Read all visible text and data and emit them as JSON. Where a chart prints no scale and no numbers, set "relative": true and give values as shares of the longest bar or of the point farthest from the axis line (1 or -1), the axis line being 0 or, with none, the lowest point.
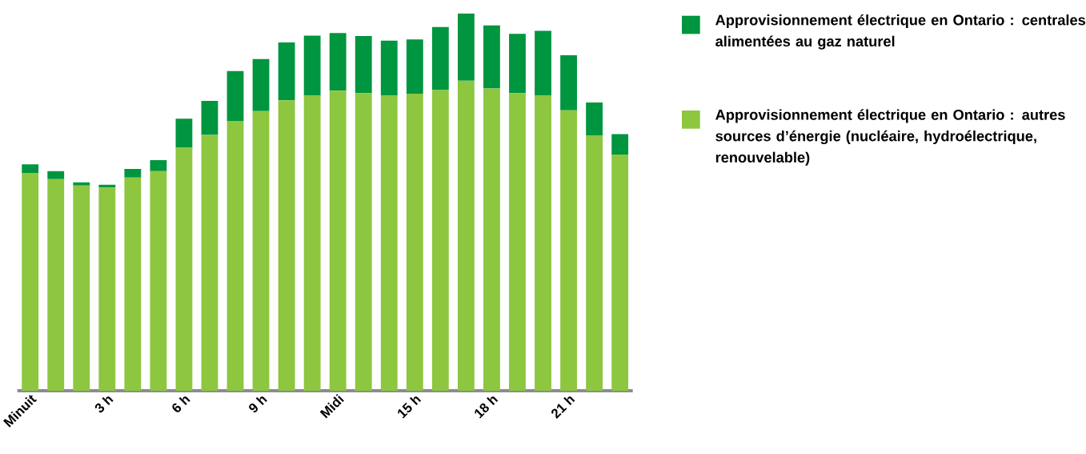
{
  "chart_data": {
    "type": "bar",
    "stacked": true,
    "relative": true,
    "legend": "top right",
    "categories": [
      "Minuit",
      null,
      null,
      "3 h",
      null,
      null,
      "6 h",
      null,
      null,
      "9 h",
      null,
      null,
      "Midi",
      null,
      null,
      "15 h",
      null,
      null,
      "18 h",
      null,
      null,
      "21 h",
      null,
      null
    ],
    "series": [
      {
        "name": "Approvisionnement électrique en Ontario : autres sources d’énergie (nucléaire, hydroélectrique, renouvelable)",
        "color": "#8dc63f",
        "values": [
          0.577,
          0.561,
          0.544,
          0.538,
          0.565,
          0.582,
          0.644,
          0.678,
          0.715,
          0.741,
          0.77,
          0.782,
          0.795,
          0.789,
          0.782,
          0.787,
          0.797,
          0.822,
          0.801,
          0.789,
          0.782,
          0.743,
          0.676,
          0.626
        ]
      },
      {
        "name": "Approvisionnement électrique en Ontario : centrales alimentées au gaz naturel",
        "color": "#00953f",
        "values": [
          0.023,
          0.021,
          0.008,
          0.008,
          0.023,
          0.029,
          0.077,
          0.09,
          0.132,
          0.138,
          0.153,
          0.159,
          0.153,
          0.151,
          0.146,
          0.144,
          0.167,
          0.178,
          0.167,
          0.157,
          0.172,
          0.146,
          0.088,
          0.054
        ]
      }
    ]
  }
}
